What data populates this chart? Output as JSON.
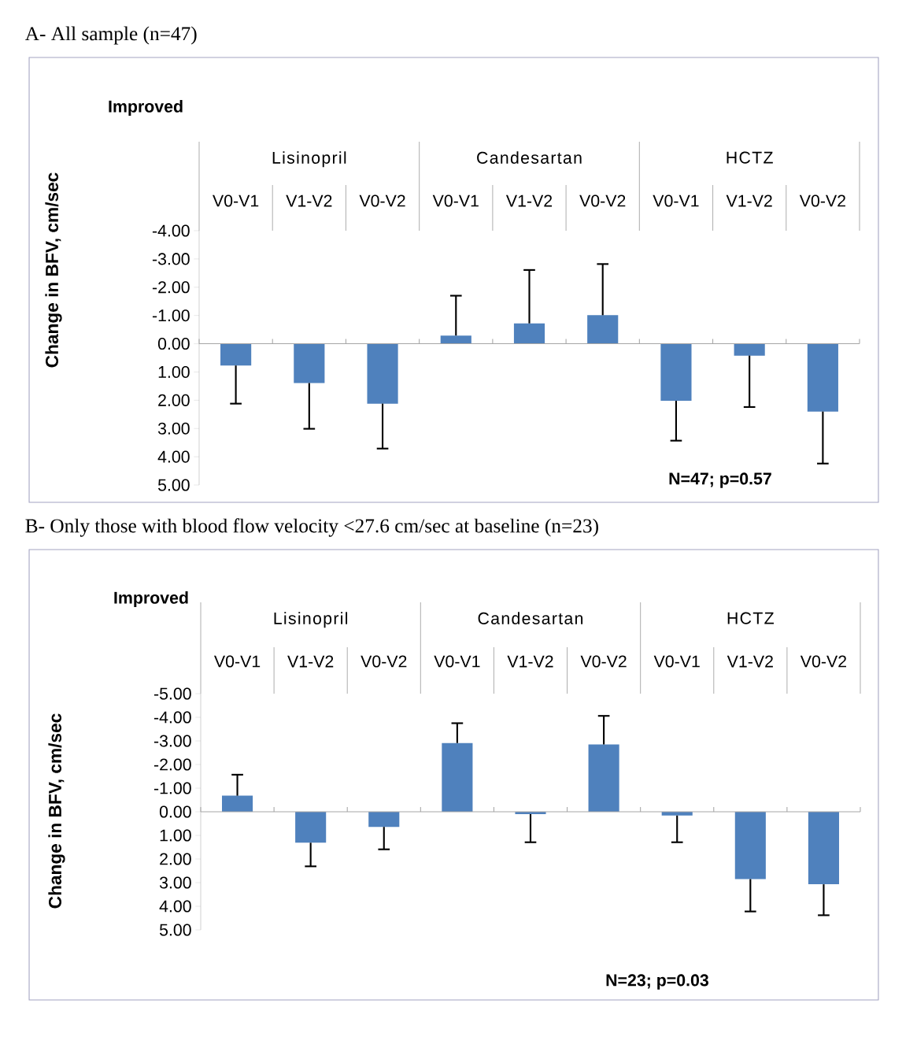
{
  "chart_data": [
    {
      "type": "bar",
      "title": "A- All sample (n=47)",
      "ylabel": "Change in BFV, cm/sec",
      "categories": [
        "V0-V1",
        "V1-V2",
        "V0-V2",
        "V0-V1",
        "V1-V2",
        "V0-V2",
        "V0-V1",
        "V1-V2",
        "V0-V2"
      ],
      "values": [
        0.77,
        1.39,
        2.12,
        -0.29,
        -0.72,
        -1.01,
        2.02,
        0.42,
        2.4
      ],
      "errors": [
        [
          0.77,
          2.12
        ],
        [
          1.39,
          3.01
        ],
        [
          2.12,
          3.71
        ],
        [
          -1.7,
          -0.29
        ],
        [
          -2.61,
          -0.72
        ],
        [
          -2.82,
          -1.01
        ],
        [
          2.02,
          3.43
        ],
        [
          0.42,
          2.24
        ],
        [
          2.4,
          4.24
        ]
      ],
      "color": "#4f81bd",
      "ylim": [
        5,
        -4
      ],
      "yticks": [
        {
          "value": -4,
          "label": "-4.00"
        },
        {
          "value": -3,
          "label": "-3.00"
        },
        {
          "value": -2,
          "label": "-2.00"
        },
        {
          "value": -1,
          "label": "-1.00"
        },
        {
          "value": 0,
          "label": "0.00"
        },
        {
          "value": 1,
          "label": "1.00"
        },
        {
          "value": 2,
          "label": "2.00"
        },
        {
          "value": 3,
          "label": "3.00"
        },
        {
          "value": 4,
          "label": "4.00"
        },
        {
          "value": 5,
          "label": "5.00"
        }
      ],
      "annotations": [
        "Lisinopril",
        "Candesartan",
        "HCTZ",
        "Improved",
        "N=47; p=0.57"
      ]
    },
    {
      "type": "bar",
      "title": "B- Only those with blood flow velocity <27.6 cm/sec at baseline (n=23)",
      "ylabel": "Change in BFV, cm/sec",
      "categories": [
        "V0-V1",
        "V1-V2",
        "V0-V2",
        "V0-V1",
        "V1-V2",
        "V0-V2",
        "V0-V1",
        "V1-V2",
        "V0-V2"
      ],
      "values": [
        -0.68,
        1.31,
        0.64,
        -2.91,
        0.1,
        -2.85,
        0.16,
        2.85,
        3.07
      ],
      "errors": [
        [
          -1.57,
          -0.68
        ],
        [
          1.31,
          2.31
        ],
        [
          0.64,
          1.59
        ],
        [
          -3.75,
          -2.91
        ],
        [
          0.1,
          1.29
        ],
        [
          -4.06,
          -2.85
        ],
        [
          0.16,
          1.29
        ],
        [
          2.85,
          4.22
        ],
        [
          3.07,
          4.38
        ]
      ],
      "color": "#4f81bd",
      "ylim": [
        5,
        -5
      ],
      "yticks": [
        {
          "value": -5,
          "label": "-5.00"
        },
        {
          "value": -4,
          "label": "-4.00"
        },
        {
          "value": -3,
          "label": "-3.00"
        },
        {
          "value": -2,
          "label": "-2.00"
        },
        {
          "value": -1,
          "label": "-1.00"
        },
        {
          "value": 0,
          "label": "0.00"
        },
        {
          "value": 1,
          "label": "1.00"
        },
        {
          "value": 2,
          "label": "2.00"
        },
        {
          "value": 3,
          "label": "3.00"
        },
        {
          "value": 4,
          "label": "4.00"
        },
        {
          "value": 5,
          "label": "5.00"
        }
      ],
      "annotations": [
        "Lisinopril",
        "Candesartan",
        "HCTZ",
        "Improved",
        "N=23; p=0.03"
      ]
    }
  ]
}
